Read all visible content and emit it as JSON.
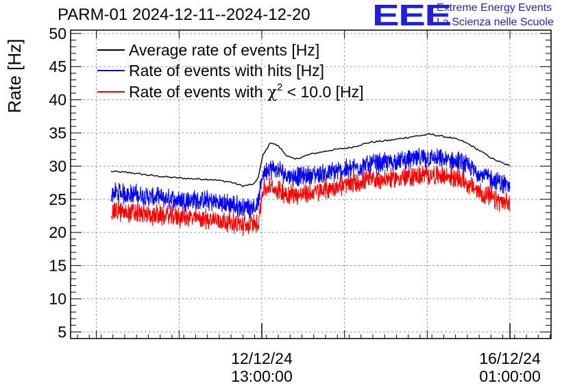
{
  "header": {
    "title": "PARM-01 2024-12-11--2024-12-20"
  },
  "logo": {
    "mark": "EEE",
    "line1": "Extreme Energy Events",
    "line2": "La Scienza nelle Scuole",
    "color": "#1f1fe0"
  },
  "chart_data": {
    "type": "line",
    "title": "PARM-01 2024-12-11--2024-12-20",
    "xlabel": "",
    "ylabel": "Rate [Hz]",
    "ylim": [
      4,
      50.5
    ],
    "yticks": [
      5,
      10,
      15,
      20,
      25,
      30,
      35,
      40,
      45,
      50
    ],
    "xlim": [
      0,
      1
    ],
    "xticks": [
      {
        "pos": 0.378,
        "line1": "12/12/24",
        "line2": "13:00:00"
      },
      {
        "pos": 1.0,
        "line1": "16/12/24",
        "line2": "01:00:00"
      }
    ],
    "grid": true,
    "legend_position": "top-left",
    "x": [
      0.0,
      0.05,
      0.1,
      0.15,
      0.2,
      0.25,
      0.3,
      0.33,
      0.36,
      0.37,
      0.38,
      0.4,
      0.42,
      0.44,
      0.46,
      0.5,
      0.55,
      0.6,
      0.65,
      0.7,
      0.75,
      0.8,
      0.85,
      0.88,
      0.9,
      0.93,
      0.96,
      1.0
    ],
    "series": [
      {
        "name": "Average rate of events [Hz]",
        "color": "#000000",
        "values": [
          29.2,
          29.0,
          28.6,
          28.3,
          28.1,
          28.0,
          27.6,
          27.0,
          27.3,
          28.5,
          31.5,
          33.6,
          33.0,
          31.6,
          31.0,
          31.8,
          32.4,
          32.8,
          33.6,
          33.9,
          34.4,
          34.8,
          34.3,
          33.8,
          33.2,
          32.1,
          31.0,
          30.0
        ]
      },
      {
        "name": "Rate of events with hits [Hz]",
        "color": "#0000ff",
        "values": [
          26.0,
          25.8,
          25.3,
          25.0,
          24.9,
          24.7,
          24.2,
          23.8,
          23.9,
          24.5,
          29.0,
          29.6,
          29.3,
          28.7,
          28.4,
          28.6,
          29.0,
          29.6,
          30.3,
          30.6,
          31.0,
          31.2,
          30.8,
          30.5,
          29.7,
          28.8,
          27.8,
          27.0
        ]
      },
      {
        "name": "Rate of events with χ2 < 10.0 [Hz]",
        "color": "#ff0000",
        "values": [
          23.2,
          23.0,
          22.6,
          22.5,
          22.2,
          22.0,
          21.6,
          21.1,
          21.2,
          21.8,
          26.5,
          26.8,
          26.3,
          25.9,
          25.7,
          25.9,
          26.6,
          27.3,
          27.9,
          28.1,
          28.4,
          28.7,
          28.4,
          28.0,
          27.0,
          25.9,
          24.9,
          24.2
        ]
      }
    ]
  },
  "legend": {
    "entries": [
      {
        "label": "Average rate of events [Hz]",
        "color": "#000000"
      },
      {
        "label": "Rate of events with hits [Hz]",
        "color": "#0000ff"
      },
      {
        "label_prefix": "Rate of events with ",
        "chi": "χ",
        "sup": "2",
        "label_suffix": " < 10.0 [Hz]",
        "color": "#ff0000"
      }
    ]
  }
}
